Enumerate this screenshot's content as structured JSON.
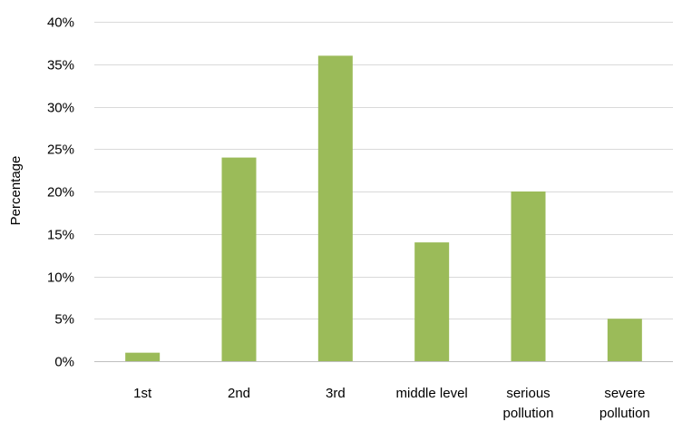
{
  "chart_data": {
    "type": "bar",
    "title": "",
    "xlabel": "",
    "ylabel": "Percentage",
    "categories": [
      "1st",
      "2nd",
      "3rd",
      "middle level",
      "serious pollution",
      "severe pollution"
    ],
    "category_lines": [
      [
        "1st"
      ],
      [
        "2nd"
      ],
      [
        "3rd"
      ],
      [
        "middle level"
      ],
      [
        "serious",
        "pollution"
      ],
      [
        "severe",
        "pollution"
      ]
    ],
    "values": [
      1,
      24,
      36,
      14,
      20,
      5
    ],
    "value_unit": "%",
    "ylim": [
      0,
      40
    ],
    "yticks": [
      0,
      5,
      10,
      15,
      20,
      25,
      30,
      35,
      40
    ],
    "ytick_labels": [
      "0%",
      "5%",
      "10%",
      "15%",
      "20%",
      "25%",
      "30%",
      "35%",
      "40%"
    ],
    "grid": true,
    "legend": "none",
    "bar_color": "#9bbb59"
  }
}
